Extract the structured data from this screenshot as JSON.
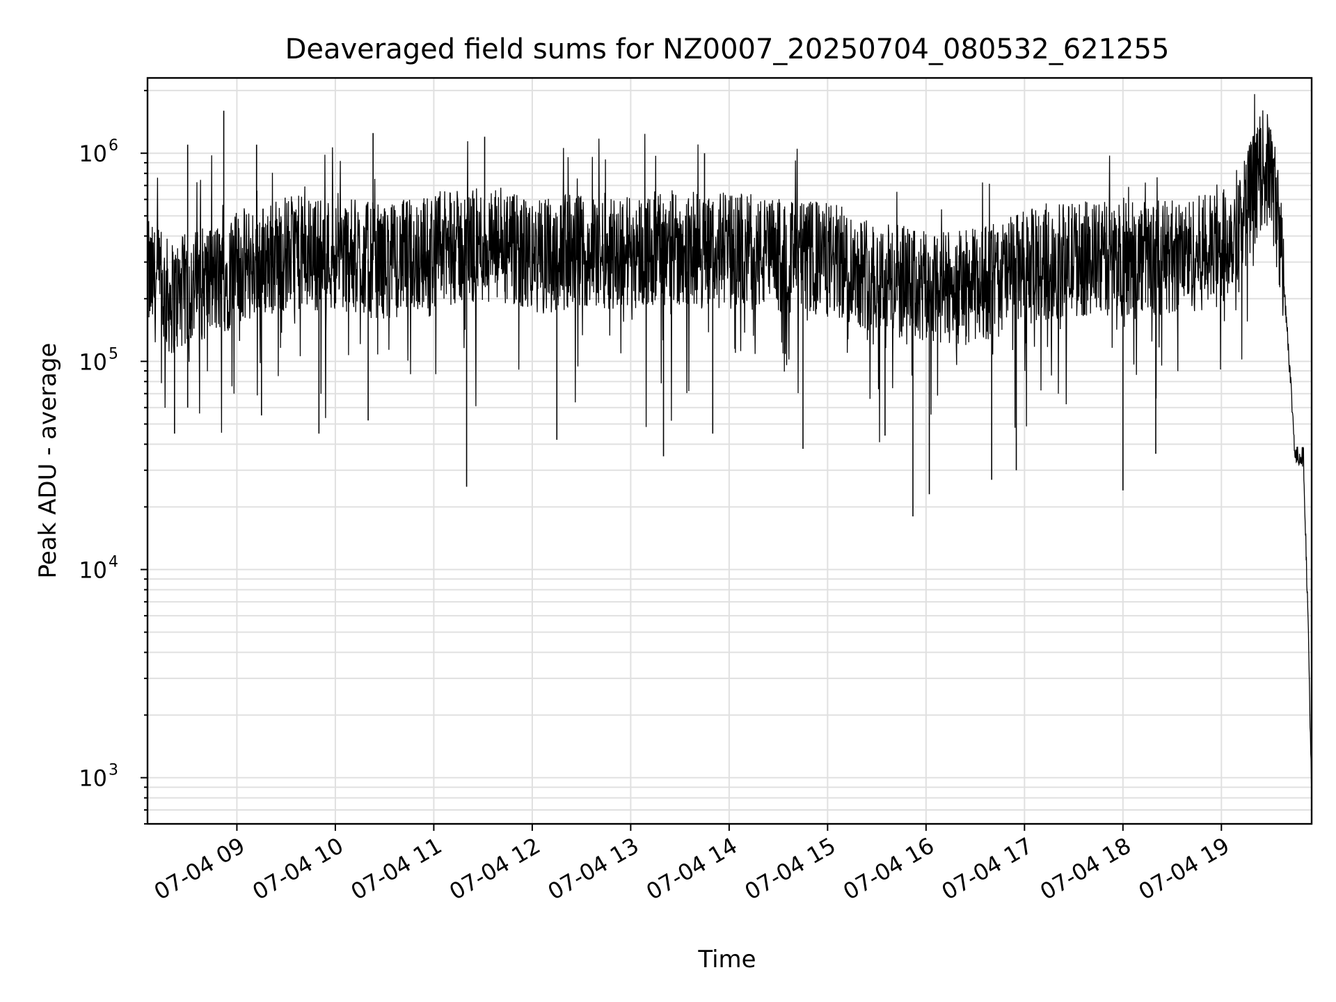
{
  "chart_data": {
    "type": "line",
    "title": "Deaveraged field sums for NZ0007_20250704_080532_621255",
    "xlabel": "Time",
    "ylabel": "Peak ADU - average",
    "y_scale": "log",
    "ylim": [
      600,
      2300000
    ],
    "xlim": [
      "2025-07-04T08:05:32",
      "2025-07-04T19:55:00"
    ],
    "grid": true,
    "line_color": "#000000",
    "x_ticks": [
      {
        "time": "2025-07-04T09:00",
        "label": "07-04 09"
      },
      {
        "time": "2025-07-04T10:00",
        "label": "07-04 10"
      },
      {
        "time": "2025-07-04T11:00",
        "label": "07-04 11"
      },
      {
        "time": "2025-07-04T12:00",
        "label": "07-04 12"
      },
      {
        "time": "2025-07-04T13:00",
        "label": "07-04 13"
      },
      {
        "time": "2025-07-04T14:00",
        "label": "07-04 14"
      },
      {
        "time": "2025-07-04T15:00",
        "label": "07-04 15"
      },
      {
        "time": "2025-07-04T16:00",
        "label": "07-04 16"
      },
      {
        "time": "2025-07-04T17:00",
        "label": "07-04 17"
      },
      {
        "time": "2025-07-04T18:00",
        "label": "07-04 18"
      },
      {
        "time": "2025-07-04T19:00",
        "label": "07-04 19"
      }
    ],
    "y_ticks": [
      {
        "value": 1000,
        "base": "10",
        "exp": "3"
      },
      {
        "value": 10000,
        "base": "10",
        "exp": "4"
      },
      {
        "value": 100000,
        "base": "10",
        "exp": "5"
      },
      {
        "value": 1000000,
        "base": "10",
        "exp": "6"
      }
    ],
    "series": [
      {
        "points": [
          [
            "2025-07-04T08:06",
            250000
          ],
          [
            "2025-07-04T08:20",
            200000
          ],
          [
            "2025-07-04T08:35",
            230000
          ],
          [
            "2025-07-04T08:50",
            250000
          ],
          [
            "2025-07-04T09:00",
            280000
          ],
          [
            "2025-07-04T09:30",
            330000
          ],
          [
            "2025-07-04T10:00",
            330000
          ],
          [
            "2025-07-04T10:30",
            300000
          ],
          [
            "2025-07-04T11:00",
            340000
          ],
          [
            "2025-07-04T11:30",
            360000
          ],
          [
            "2025-07-04T12:00",
            320000
          ],
          [
            "2025-07-04T12:30",
            340000
          ],
          [
            "2025-07-04T13:00",
            340000
          ],
          [
            "2025-07-04T13:30",
            350000
          ],
          [
            "2025-07-04T14:00",
            340000
          ],
          [
            "2025-07-04T14:30",
            320000
          ],
          [
            "2025-07-04T15:00",
            310000
          ],
          [
            "2025-07-04T15:30",
            260000
          ],
          [
            "2025-07-04T16:00",
            220000
          ],
          [
            "2025-07-04T16:30",
            230000
          ],
          [
            "2025-07-04T17:00",
            280000
          ],
          [
            "2025-07-04T17:30",
            310000
          ],
          [
            "2025-07-04T18:00",
            310000
          ],
          [
            "2025-07-04T18:30",
            320000
          ],
          [
            "2025-07-04T19:00",
            340000
          ],
          [
            "2025-07-04T19:15",
            550000
          ],
          [
            "2025-07-04T19:25",
            850000
          ],
          [
            "2025-07-04T19:30",
            800000
          ],
          [
            "2025-07-04T19:35",
            450000
          ],
          [
            "2025-07-04T19:40",
            150000
          ],
          [
            "2025-07-04T19:45",
            35000
          ],
          [
            "2025-07-04T19:50",
            35000
          ],
          [
            "2025-07-04T19:53",
            5000
          ],
          [
            "2025-07-04T19:55",
            800
          ]
        ],
        "spikes_high": [
          [
            "2025-07-04T08:52",
            1600000
          ],
          [
            "2025-07-04T08:30",
            1100000
          ],
          [
            "2025-07-04T10:23",
            1250000
          ],
          [
            "2025-07-04T11:31",
            1200000
          ],
          [
            "2025-07-04T09:12",
            1100000
          ],
          [
            "2025-07-04T13:45",
            1000000
          ],
          [
            "2025-07-04T19:30",
            1300000
          ]
        ],
        "spikes_low": [
          [
            "2025-07-04T08:22",
            45000
          ],
          [
            "2025-07-04T08:30",
            60000
          ],
          [
            "2025-07-04T09:15",
            55000
          ],
          [
            "2025-07-04T09:50",
            45000
          ],
          [
            "2025-07-04T10:20",
            52000
          ],
          [
            "2025-07-04T11:20",
            25000
          ],
          [
            "2025-07-04T12:15",
            42000
          ],
          [
            "2025-07-04T13:20",
            35000
          ],
          [
            "2025-07-04T13:50",
            45000
          ],
          [
            "2025-07-04T14:45",
            38000
          ],
          [
            "2025-07-04T15:35",
            44000
          ],
          [
            "2025-07-04T15:52",
            18000
          ],
          [
            "2025-07-04T16:02",
            23000
          ],
          [
            "2025-07-04T16:40",
            27000
          ],
          [
            "2025-07-04T16:55",
            30000
          ],
          [
            "2025-07-04T18:00",
            24000
          ],
          [
            "2025-07-04T18:20",
            36000
          ]
        ]
      }
    ]
  }
}
